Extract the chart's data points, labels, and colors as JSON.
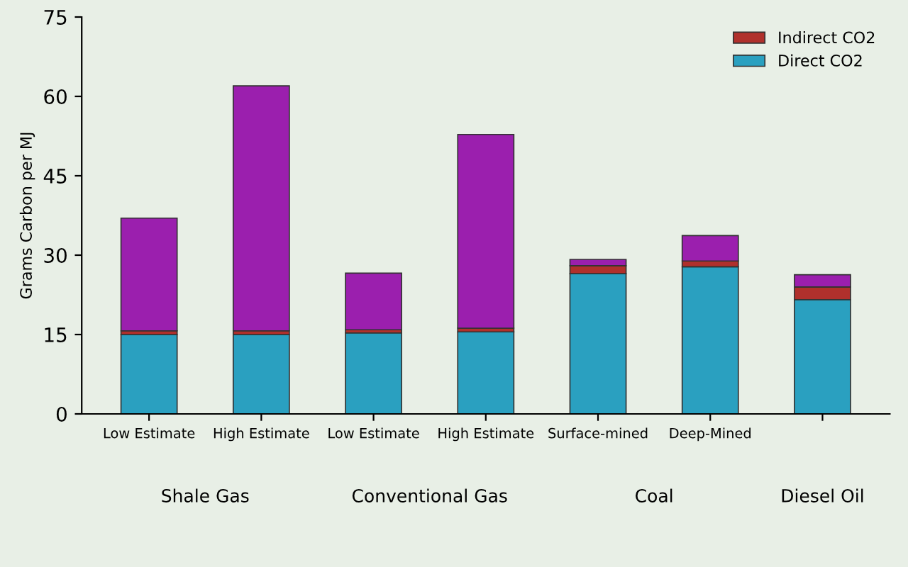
{
  "chart_data": {
    "type": "bar",
    "stacked": true,
    "ylabel": "Grams Carbon per MJ",
    "categories": [
      "Low Estimate",
      "High Estimate",
      "Low Estimate",
      "High Estimate",
      "Surface-mined",
      "Deep-Mined",
      null
    ],
    "series": [
      {
        "name": "Direct CO2",
        "color": "#2aa0c0",
        "values": [
          15,
          15,
          15.3,
          15.5,
          26.5,
          27.8,
          21.6
        ]
      },
      {
        "name": "Indirect CO2",
        "color": "#b0302c",
        "values": [
          0.7,
          0.7,
          0.6,
          0.7,
          1.5,
          1.1,
          2.4
        ]
      },
      {
        "color": "#9b1fae",
        "values": [
          21.3,
          46.3,
          10.7,
          36.6,
          1.2,
          4.8,
          2.3
        ]
      }
    ],
    "ylim": [
      0,
      75
    ],
    "yticks": [
      0,
      15,
      30,
      45,
      60,
      75
    ],
    "grid": false,
    "legend": "top right",
    "annotations": [
      "Shale Gas",
      "Conventional Gas",
      "Coal",
      "Diesel Oil"
    ]
  }
}
